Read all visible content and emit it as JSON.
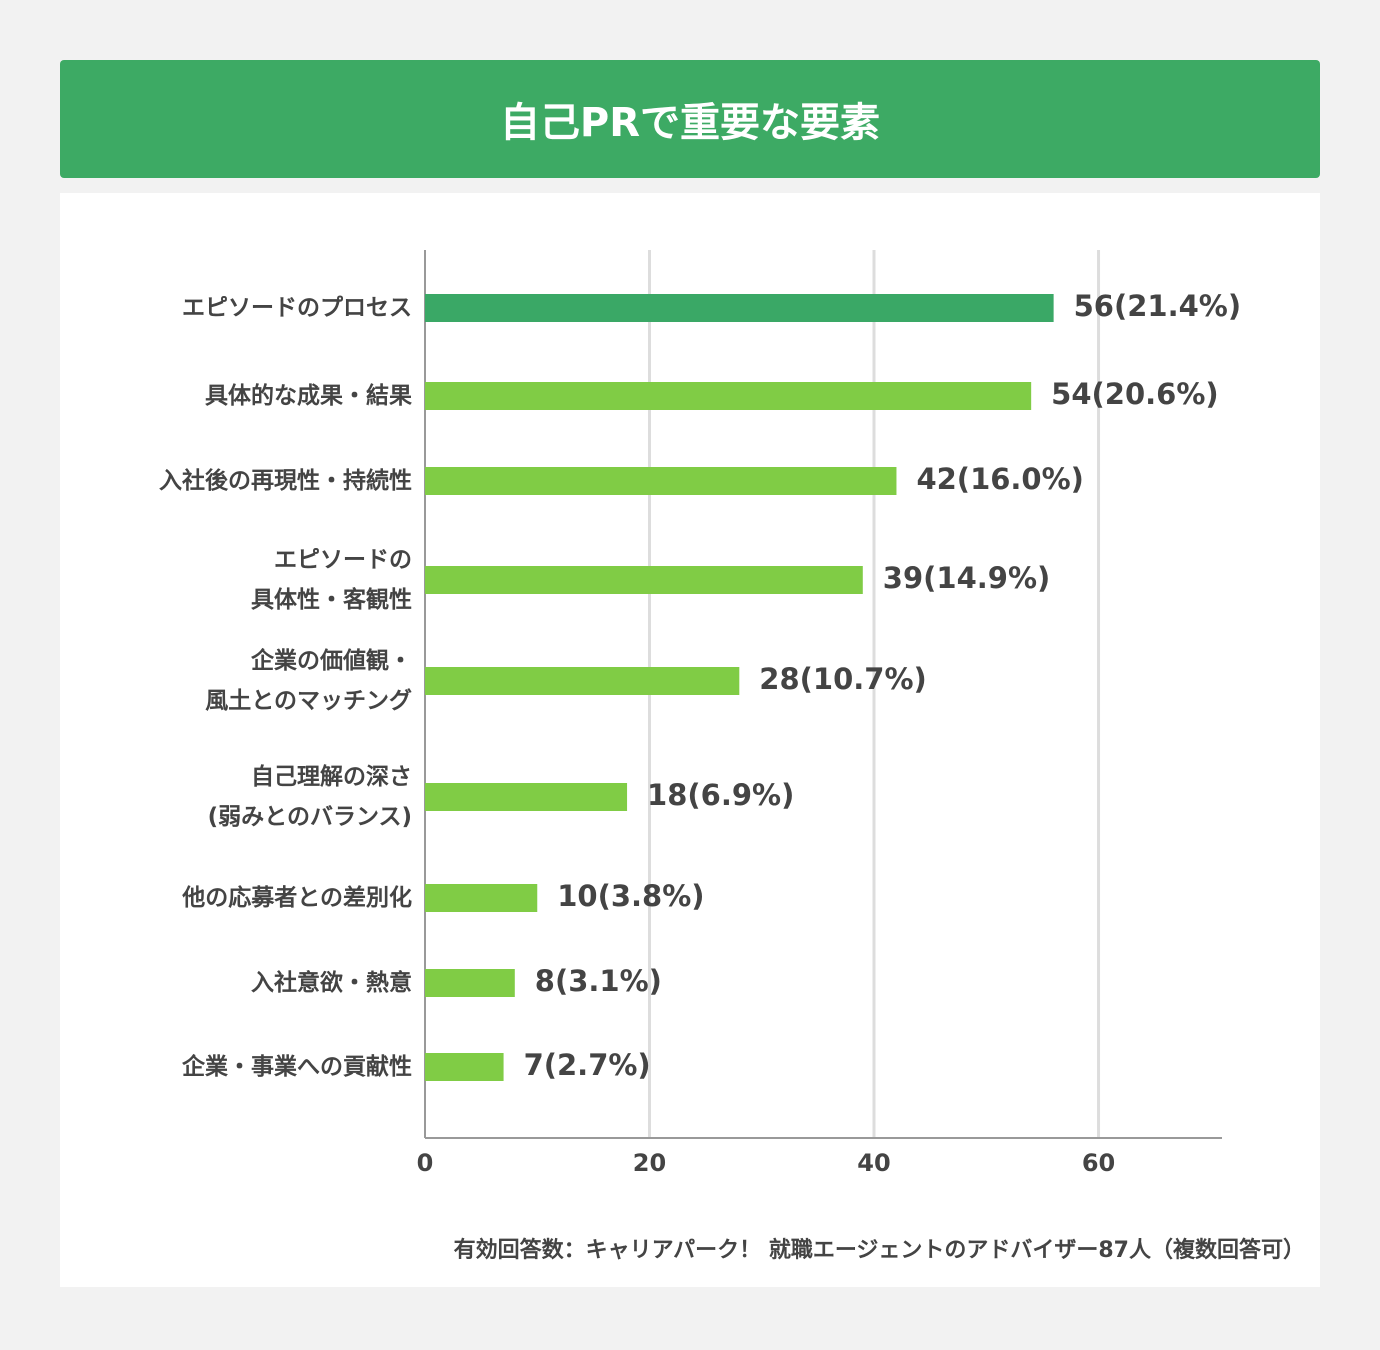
{
  "chart_data": {
    "type": "bar",
    "orientation": "horizontal",
    "title": "自己PRで重要な要素",
    "categories": [
      "エピソードのプロセス",
      "具体的な成果・結果",
      "入社後の再現性・持続性",
      "エピソードの\n具体性・客観性",
      "企業の価値観・\n風土とのマッチング",
      "自己理解の深さ\n(弱みとのバランス)",
      "他の応募者との差別化",
      "入社意欲・熱意",
      "企業・事業への貢献性"
    ],
    "values": [
      56,
      54,
      42,
      39,
      28,
      18,
      10,
      8,
      7
    ],
    "value_labels": [
      "56(21.4%)",
      "54(20.6%)",
      "42(16.0%)",
      "39(14.9%)",
      "28(10.7%)",
      "18(6.9%)",
      "10(3.8%)",
      "8(3.1%)",
      "7(2.7%)"
    ],
    "colors": [
      "#3aa866",
      "#80cc45",
      "#80cc45",
      "#80cc45",
      "#80cc45",
      "#80cc45",
      "#80cc45",
      "#80cc45",
      "#80cc45"
    ],
    "xlim": [
      0,
      71
    ],
    "xticks": [
      0,
      20,
      40,
      60
    ],
    "grid": true,
    "note": "有効回答数：キャリアパーク！ 就職エージェントのアドバイザー87人（複数回答可）"
  }
}
